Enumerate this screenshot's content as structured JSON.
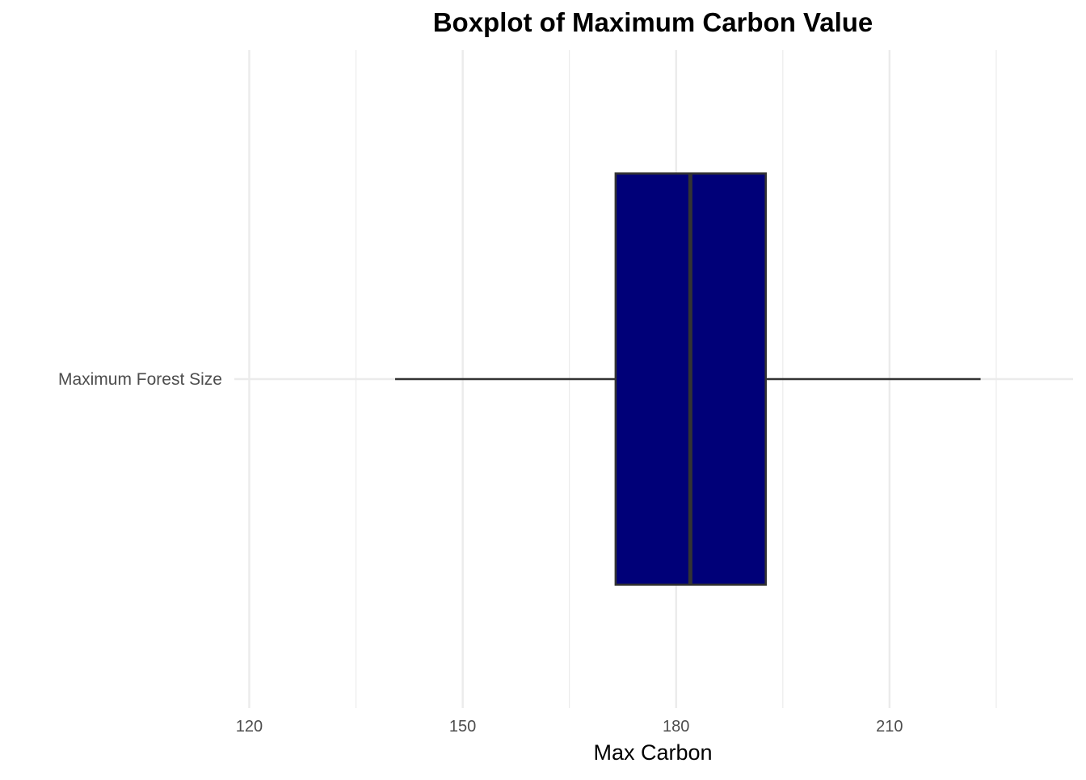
{
  "chart_data": {
    "type": "boxplot",
    "title": "Boxplot of Maximum Carbon Value",
    "xlabel": "Max Carbon",
    "ylabel": "",
    "orientation": "horizontal",
    "xlim": [
      117.9,
      235.8
    ],
    "x_ticks": [
      120,
      150,
      180,
      210
    ],
    "x_minor_ticks": [
      135,
      165,
      195,
      225
    ],
    "grid": true,
    "categories": [
      "Maximum Forest Size"
    ],
    "boxes": [
      {
        "category": "Maximum Forest Size",
        "whisker_low": 140.5,
        "q1": 171.5,
        "median": 182,
        "q3": 192.6,
        "whisker_high": 222.8
      }
    ],
    "colors": {
      "box_fill": "#000078",
      "box_outline": "#333333",
      "whisker": "#333333",
      "grid_major": "#ebebeb",
      "grid_minor": "#ebebeb"
    }
  }
}
